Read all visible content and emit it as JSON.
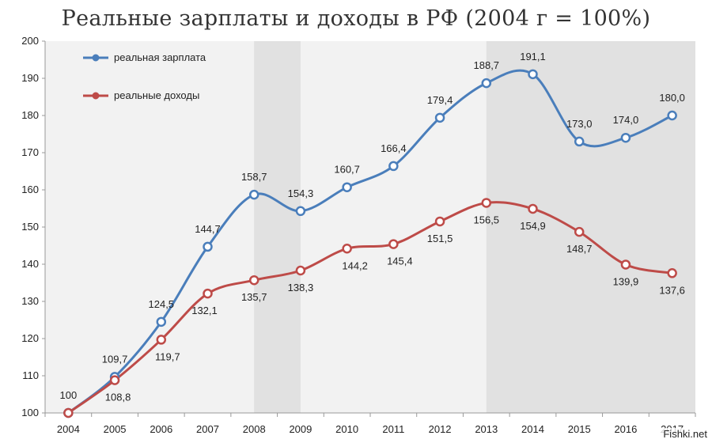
{
  "watermark": "Fishki.net",
  "chart_data": {
    "type": "line",
    "title": "Реальные зарплаты и доходы в РФ (2004 г = 100%)",
    "xlabel": "",
    "ylabel": "",
    "x": [
      "2004",
      "2005",
      "2006",
      "2007",
      "2008",
      "2009",
      "2010",
      "2011",
      "2012",
      "2013",
      "2014",
      "2015",
      "2016",
      "2017"
    ],
    "ylim": [
      100,
      200
    ],
    "yticks": [
      100,
      110,
      120,
      130,
      140,
      150,
      160,
      170,
      180,
      190,
      200
    ],
    "grid": false,
    "legend_position": "top-left",
    "shaded_periods": [
      [
        "2008",
        "2009"
      ],
      [
        "2013",
        "2017"
      ]
    ],
    "series": [
      {
        "name": "реальная зарплата",
        "color": "#4a7ebb",
        "values": [
          100,
          109.7,
          124.5,
          144.7,
          158.7,
          154.3,
          160.7,
          166.4,
          179.4,
          188.7,
          191.1,
          173.0,
          174.0,
          180.0
        ],
        "labels": [
          "100",
          "109,7",
          "124,5",
          "144,7",
          "158,7",
          "154,3",
          "160,7",
          "166,4",
          "179,4",
          "188,7",
          "191,1",
          "173,0",
          "174,0",
          "180,0"
        ]
      },
      {
        "name": "реальные доходы",
        "color": "#be4b48",
        "values": [
          100,
          108.8,
          119.7,
          132.1,
          135.7,
          138.3,
          144.2,
          145.4,
          151.5,
          156.5,
          154.9,
          148.7,
          139.9,
          137.6
        ],
        "labels": [
          "",
          "108,8",
          "119,7",
          "132,1",
          "135,7",
          "138,3",
          "144,2",
          "145,4",
          "151,5",
          "156,5",
          "154,9",
          "148,7",
          "139,9",
          "137,6"
        ]
      }
    ]
  }
}
